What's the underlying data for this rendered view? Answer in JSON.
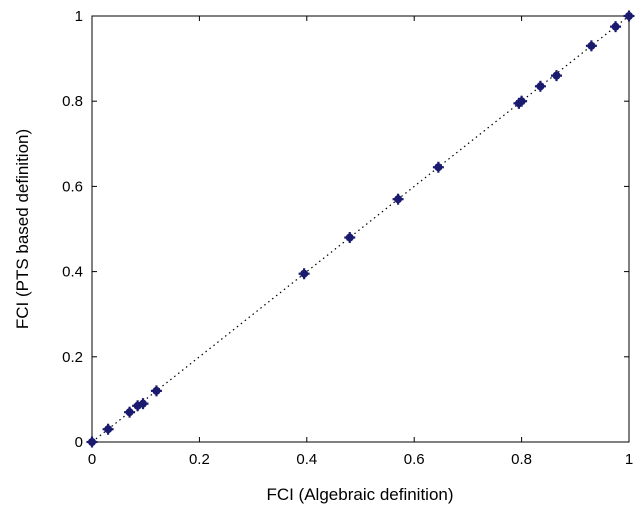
{
  "chart_data": {
    "type": "scatter",
    "title": "",
    "xlabel": "FCI (Algebraic definition)",
    "ylabel": "FCI (PTS based definition)",
    "xlim": [
      0,
      1
    ],
    "ylim": [
      0,
      1
    ],
    "xticks": [
      "0",
      "0.2",
      "0.4",
      "0.6",
      "0.8",
      "1"
    ],
    "yticks": [
      "0",
      "0.2",
      "0.4",
      "0.6",
      "0.8",
      "1"
    ],
    "grid": false,
    "reference_line": {
      "style": "dotted",
      "from": [
        0,
        0
      ],
      "to": [
        1,
        1
      ],
      "color": "#000000"
    },
    "marker_color": "#1a1a6e",
    "points": [
      {
        "x": 0.0,
        "y": 0.0
      },
      {
        "x": 0.03,
        "y": 0.03
      },
      {
        "x": 0.07,
        "y": 0.07
      },
      {
        "x": 0.085,
        "y": 0.085
      },
      {
        "x": 0.095,
        "y": 0.09
      },
      {
        "x": 0.12,
        "y": 0.12
      },
      {
        "x": 0.395,
        "y": 0.395
      },
      {
        "x": 0.48,
        "y": 0.48
      },
      {
        "x": 0.57,
        "y": 0.57
      },
      {
        "x": 0.645,
        "y": 0.645
      },
      {
        "x": 0.795,
        "y": 0.795
      },
      {
        "x": 0.8,
        "y": 0.8
      },
      {
        "x": 0.835,
        "y": 0.835
      },
      {
        "x": 0.865,
        "y": 0.86
      },
      {
        "x": 0.93,
        "y": 0.93
      },
      {
        "x": 0.975,
        "y": 0.975
      },
      {
        "x": 1.0,
        "y": 1.0
      }
    ]
  }
}
